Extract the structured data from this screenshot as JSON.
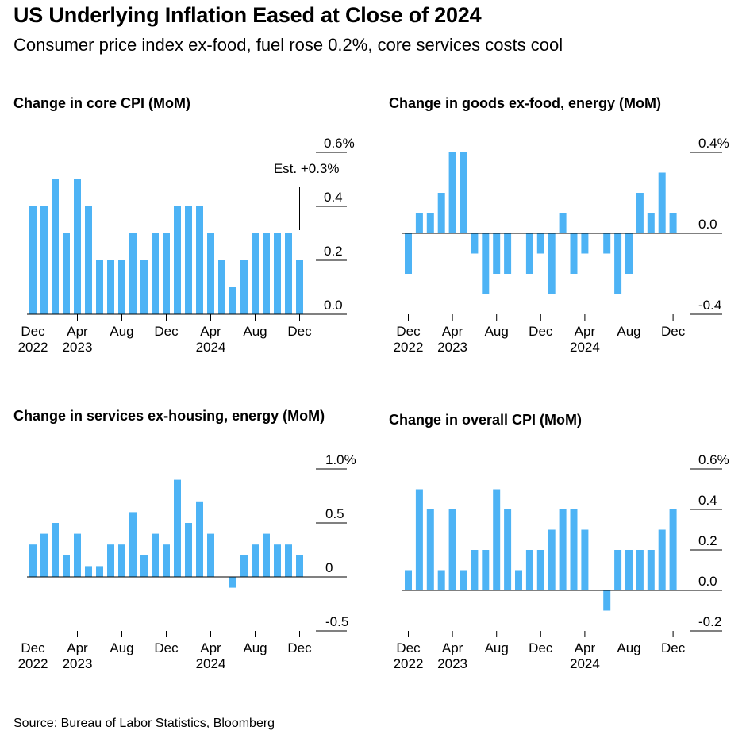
{
  "header": {
    "title": "US Underlying Inflation Eased at Close of 2024",
    "subtitle": "Consumer price index ex-food, fuel rose 0.2%, core services costs cool"
  },
  "footer": {
    "source": "Source: Bureau of Labor Statistics, Bloomberg"
  },
  "colors": {
    "bar": "#4db3f5",
    "axis": "#000000",
    "text": "#000000"
  },
  "chart_data": [
    {
      "type": "bar",
      "title": "Change in core CPI (MoM)",
      "x_tick_labels": [
        {
          "index": 0,
          "line1": "Dec",
          "line2": "2022"
        },
        {
          "index": 4,
          "line1": "Apr",
          "line2": "2023"
        },
        {
          "index": 8,
          "line1": "Aug",
          "line2": ""
        },
        {
          "index": 12,
          "line1": "Dec",
          "line2": ""
        },
        {
          "index": 16,
          "line1": "Apr",
          "line2": "2024"
        },
        {
          "index": 20,
          "line1": "Aug",
          "line2": ""
        },
        {
          "index": 24,
          "line1": "Dec",
          "line2": ""
        }
      ],
      "y_ticks": [
        {
          "value": 0.0,
          "label": "0.0"
        },
        {
          "value": 0.2,
          "label": "0.2"
        },
        {
          "value": 0.4,
          "label": "0.4"
        },
        {
          "value": 0.6,
          "label": "0.6%"
        }
      ],
      "ylim": [
        0.0,
        0.6
      ],
      "values": [
        0.4,
        0.4,
        0.5,
        0.3,
        0.5,
        0.4,
        0.2,
        0.2,
        0.2,
        0.3,
        0.2,
        0.3,
        0.3,
        0.4,
        0.4,
        0.4,
        0.3,
        0.2,
        0.1,
        0.2,
        0.3,
        0.3,
        0.3,
        0.3,
        0.2
      ],
      "annotation": {
        "text": "Est. +0.3%",
        "index": 24,
        "value": 0.3
      }
    },
    {
      "type": "bar",
      "title": "Change in goods ex-food, energy (MoM)",
      "x_tick_labels": [
        {
          "index": 0,
          "line1": "Dec",
          "line2": "2022"
        },
        {
          "index": 4,
          "line1": "Apr",
          "line2": "2023"
        },
        {
          "index": 8,
          "line1": "Aug",
          "line2": ""
        },
        {
          "index": 12,
          "line1": "Dec",
          "line2": ""
        },
        {
          "index": 16,
          "line1": "Apr",
          "line2": "2024"
        },
        {
          "index": 20,
          "line1": "Aug",
          "line2": ""
        },
        {
          "index": 24,
          "line1": "Dec",
          "line2": ""
        }
      ],
      "y_ticks": [
        {
          "value": -0.4,
          "label": "-0.4"
        },
        {
          "value": 0.0,
          "label": "0.0"
        },
        {
          "value": 0.4,
          "label": "0.4%"
        }
      ],
      "ylim": [
        -0.4,
        0.4
      ],
      "values": [
        -0.2,
        0.1,
        0.1,
        0.2,
        0.4,
        0.4,
        -0.1,
        -0.3,
        -0.2,
        -0.2,
        0.0,
        -0.2,
        -0.1,
        -0.3,
        0.1,
        -0.2,
        -0.1,
        0.0,
        -0.1,
        -0.3,
        -0.2,
        0.2,
        0.1,
        0.3,
        0.1
      ]
    },
    {
      "type": "bar",
      "title": "Change in services ex-housing, energy (MoM)",
      "x_tick_labels": [
        {
          "index": 0,
          "line1": "Dec",
          "line2": "2022"
        },
        {
          "index": 4,
          "line1": "Apr",
          "line2": "2023"
        },
        {
          "index": 8,
          "line1": "Aug",
          "line2": ""
        },
        {
          "index": 12,
          "line1": "Dec",
          "line2": ""
        },
        {
          "index": 16,
          "line1": "Apr",
          "line2": "2024"
        },
        {
          "index": 20,
          "line1": "Aug",
          "line2": ""
        },
        {
          "index": 24,
          "line1": "Dec",
          "line2": ""
        }
      ],
      "y_ticks": [
        {
          "value": -0.5,
          "label": "-0.5"
        },
        {
          "value": 0.0,
          "label": "0"
        },
        {
          "value": 0.5,
          "label": "0.5"
        },
        {
          "value": 1.0,
          "label": "1.0%"
        }
      ],
      "ylim": [
        -0.5,
        1.0
      ],
      "values": [
        0.3,
        0.4,
        0.5,
        0.2,
        0.4,
        0.1,
        0.1,
        0.3,
        0.3,
        0.6,
        0.2,
        0.4,
        0.3,
        0.9,
        0.5,
        0.7,
        0.4,
        0.0,
        -0.1,
        0.2,
        0.3,
        0.4,
        0.3,
        0.3,
        0.2
      ]
    },
    {
      "type": "bar",
      "title": "Change in overall CPI (MoM)",
      "x_tick_labels": [
        {
          "index": 0,
          "line1": "Dec",
          "line2": "2022"
        },
        {
          "index": 4,
          "line1": "Apr",
          "line2": "2023"
        },
        {
          "index": 8,
          "line1": "Aug",
          "line2": ""
        },
        {
          "index": 12,
          "line1": "Dec",
          "line2": ""
        },
        {
          "index": 16,
          "line1": "Apr",
          "line2": "2024"
        },
        {
          "index": 20,
          "line1": "Aug",
          "line2": ""
        },
        {
          "index": 24,
          "line1": "Dec",
          "line2": ""
        }
      ],
      "y_ticks": [
        {
          "value": -0.2,
          "label": "-0.2"
        },
        {
          "value": 0.0,
          "label": "0.0"
        },
        {
          "value": 0.2,
          "label": "0.2"
        },
        {
          "value": 0.4,
          "label": "0.4"
        },
        {
          "value": 0.6,
          "label": "0.6%"
        }
      ],
      "ylim": [
        -0.2,
        0.6
      ],
      "values": [
        0.1,
        0.5,
        0.4,
        0.1,
        0.4,
        0.1,
        0.2,
        0.2,
        0.5,
        0.4,
        0.1,
        0.2,
        0.2,
        0.3,
        0.4,
        0.4,
        0.3,
        0.0,
        -0.1,
        0.2,
        0.2,
        0.2,
        0.2,
        0.3,
        0.4
      ]
    }
  ]
}
